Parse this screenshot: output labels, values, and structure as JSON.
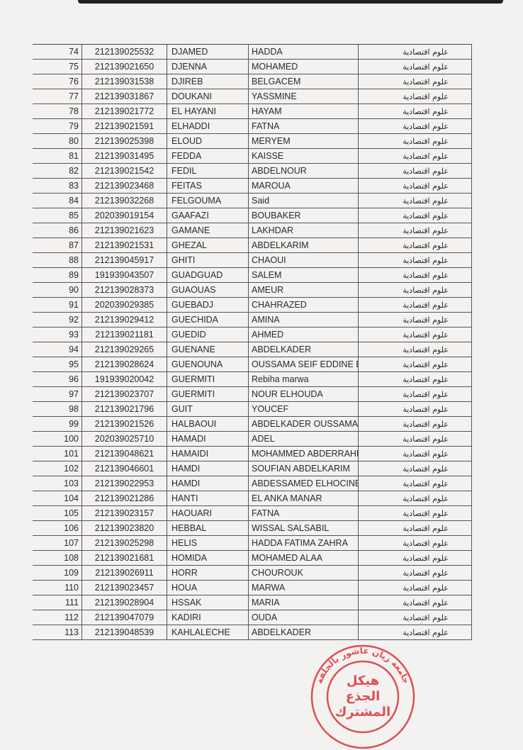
{
  "document": {
    "rows": [
      {
        "n": "74",
        "id": "212139025532",
        "last": "DJAMED",
        "first": "HADDA",
        "field": "علوم اقتصادية"
      },
      {
        "n": "75",
        "id": "212139021650",
        "last": "DJENNA",
        "first": "MOHAMED",
        "field": "علوم اقتصادية"
      },
      {
        "n": "76",
        "id": "212139031538",
        "last": "DJIREB",
        "first": "BELGACEM",
        "field": "علوم اقتصادية"
      },
      {
        "n": "77",
        "id": "212139031867",
        "last": "DOUKANI",
        "first": "YASSMINE",
        "field": "علوم اقتصادية"
      },
      {
        "n": "78",
        "id": "212139021772",
        "last": "EL HAYANI",
        "first": "HAYAM",
        "field": "علوم اقتصادية"
      },
      {
        "n": "79",
        "id": "212139021591",
        "last": "ELHADDI",
        "first": "FATNA",
        "field": "علوم اقتصادية"
      },
      {
        "n": "80",
        "id": "212139025398",
        "last": "ELOUD",
        "first": "MERYEM",
        "field": "علوم اقتصادية"
      },
      {
        "n": "81",
        "id": "212139031495",
        "last": "FEDDA",
        "first": "KAISSE",
        "field": "علوم اقتصادية"
      },
      {
        "n": "82",
        "id": "212139021542",
        "last": "FEDIL",
        "first": "ABDELNOUR",
        "field": "علوم اقتصادية"
      },
      {
        "n": "83",
        "id": "212139023468",
        "last": "FEITAS",
        "first": "MAROUA",
        "field": "علوم اقتصادية"
      },
      {
        "n": "84",
        "id": "212139032268",
        "last": "FELGOUMA",
        "first": "Said",
        "field": "علوم اقتصادية"
      },
      {
        "n": "85",
        "id": "202039019154",
        "last": "GAAFAZI",
        "first": "BOUBAKER",
        "field": "علوم اقتصادية"
      },
      {
        "n": "86",
        "id": "212139021623",
        "last": "GAMANE",
        "first": "LAKHDAR",
        "field": "علوم اقتصادية"
      },
      {
        "n": "87",
        "id": "212139021531",
        "last": "GHEZAL",
        "first": "ABDELKARIM",
        "field": "علوم اقتصادية"
      },
      {
        "n": "88",
        "id": "212139045917",
        "last": "GHITI",
        "first": "CHAOUI",
        "field": "علوم اقتصادية"
      },
      {
        "n": "89",
        "id": "191939043507",
        "last": "GUADGUAD",
        "first": "SALEM",
        "field": "علوم اقتصادية"
      },
      {
        "n": "90",
        "id": "212139028373",
        "last": "GUAOUAS",
        "first": "AMEUR",
        "field": "علوم اقتصادية"
      },
      {
        "n": "91",
        "id": "202039029385",
        "last": "GUEBADJ",
        "first": "CHAHRAZED",
        "field": "علوم اقتصادية"
      },
      {
        "n": "92",
        "id": "212139029412",
        "last": "GUECHIDA",
        "first": "AMINA",
        "field": "علوم اقتصادية"
      },
      {
        "n": "93",
        "id": "212139021181",
        "last": "GUEDID",
        "first": "AHMED",
        "field": "علوم اقتصادية"
      },
      {
        "n": "94",
        "id": "212139029265",
        "last": "GUENANE",
        "first": "ABDELKADER",
        "field": "علوم اقتصادية"
      },
      {
        "n": "95",
        "id": "212139028624",
        "last": "GUENOUNA",
        "first": "OUSSAMA SEIF EDDINE BIL",
        "field": "علوم اقتصادية"
      },
      {
        "n": "96",
        "id": "191939020042",
        "last": "GUERMITI",
        "first": "Rebiha marwa",
        "field": "علوم اقتصادية"
      },
      {
        "n": "97",
        "id": "212139023707",
        "last": "GUERMITI",
        "first": "NOUR ELHOUDA",
        "field": "علوم اقتصادية"
      },
      {
        "n": "98",
        "id": "212139021796",
        "last": "GUIT",
        "first": "YOUCEF",
        "field": "علوم اقتصادية"
      },
      {
        "n": "99",
        "id": "212139021526",
        "last": "HALBAOUI",
        "first": "ABDELKADER OUSSAMA",
        "field": "علوم اقتصادية"
      },
      {
        "n": "100",
        "id": "202039025710",
        "last": "HAMADI",
        "first": "ADEL",
        "field": "علوم اقتصادية"
      },
      {
        "n": "101",
        "id": "212139048621",
        "last": "HAMAIDI",
        "first": "MOHAMMED ABDERRAHN",
        "field": "علوم اقتصادية"
      },
      {
        "n": "102",
        "id": "212139046601",
        "last": "HAMDI",
        "first": "SOUFIAN ABDELKARIM",
        "field": "علوم اقتصادية"
      },
      {
        "n": "103",
        "id": "212139022953",
        "last": "HAMDI",
        "first": "ABDESSAMED ELHOCINE",
        "field": "علوم اقتصادية"
      },
      {
        "n": "104",
        "id": "212139021286",
        "last": "HANTI",
        "first": "EL ANKA MANAR",
        "field": "علوم اقتصادية"
      },
      {
        "n": "105",
        "id": "212139023157",
        "last": "HAOUARI",
        "first": "FATNA",
        "field": "علوم اقتصادية"
      },
      {
        "n": "106",
        "id": "212139023820",
        "last": "HEBBAL",
        "first": "WISSAL SALSABIL",
        "field": "علوم اقتصادية"
      },
      {
        "n": "107",
        "id": "212139025298",
        "last": "HELIS",
        "first": "HADDA FATIMA ZAHRA",
        "field": "علوم اقتصادية"
      },
      {
        "n": "108",
        "id": "212139021681",
        "last": "HOMIDA",
        "first": "MOHAMED ALAA",
        "field": "علوم اقتصادية"
      },
      {
        "n": "109",
        "id": "212139026911",
        "last": "HORR",
        "first": "CHOUROUK",
        "field": "علوم اقتصادية"
      },
      {
        "n": "110",
        "id": "212139023457",
        "last": "HOUA",
        "first": "MARWA",
        "field": "علوم اقتصادية"
      },
      {
        "n": "111",
        "id": "212139028904",
        "last": "HSSAK",
        "first": "MARIA",
        "field": "علوم اقتصادية"
      },
      {
        "n": "112",
        "id": "212139047079",
        "last": "KADIRI",
        "first": "OUDA",
        "field": "علوم اقتصادية"
      },
      {
        "n": "113",
        "id": "212139048539",
        "last": "KAHLALECHE",
        "first": "ABDELKADER",
        "field": "علوم اقتصادية"
      }
    ]
  },
  "stamp": {
    "ring_text": "جامعة زيان عاشور بالجلفة",
    "center_lines": [
      "هيكل",
      "الجذع",
      "المشترك"
    ],
    "color": "#d8333a"
  }
}
